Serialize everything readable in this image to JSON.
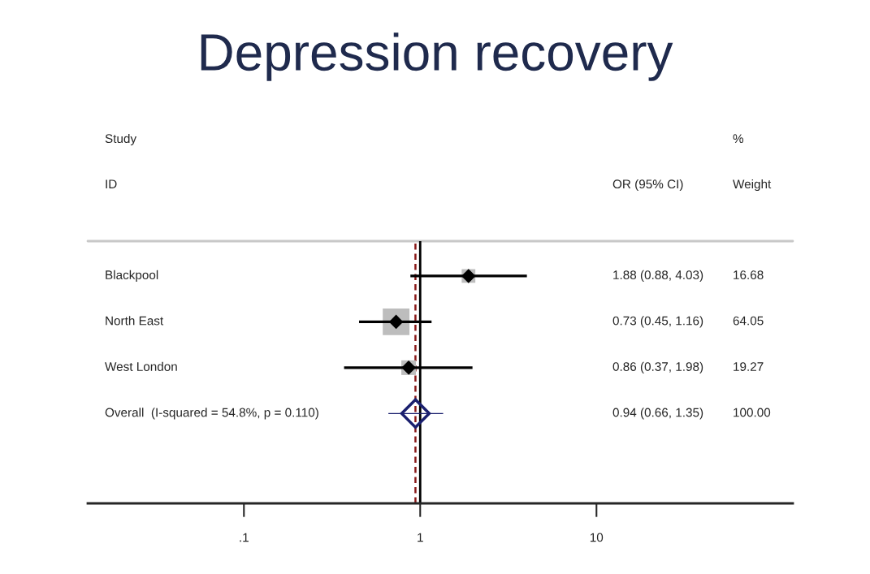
{
  "chart_data": {
    "type": "scatter",
    "orientation": "horizontal",
    "title": "Depression recovery",
    "categories": [
      "Blackpool",
      "North East",
      "West London",
      "Overall  (I-squared = 54.8%, p = 0.110)"
    ],
    "series": [
      {
        "color": "#000000",
        "colors": [
          "#000000",
          "#000000",
          "#000000",
          "#1a1f6e"
        ],
        "marker": "diamond",
        "sizes": [
          0.21,
          0.21,
          0.21,
          1
        ],
        "values": [
          1.88,
          0.73,
          0.86,
          0.94
        ],
        "errors": [
          [
            0.88,
            4.03
          ],
          [
            0.45,
            1.16
          ],
          [
            0.37,
            1.98
          ],
          [
            0.66,
            1.35
          ]
        ]
      }
    ],
    "value_labels": [
      "1.88 (0.88, 4.03)",
      "0.73 (0.45, 1.16)",
      "0.86 (0.37, 1.98)",
      "0.94 (0.66, 1.35)"
    ],
    "annotations": [
      "Study",
      "ID",
      "OR (95% CI)",
      "%",
      "Weight",
      "16.68",
      "64.05",
      "19.27",
      "100.00"
    ],
    "ref_lines": [
      {
        "axis": "x",
        "value": 1,
        "color": "#000000",
        "line_style": "solid"
      },
      {
        "axis": "x",
        "value": 0.94,
        "color": "#8b1a1a",
        "line_style": "dashed"
      }
    ],
    "log": "x",
    "xlim": [
      0.013,
      130
    ],
    "xticks": [
      {
        "value": 0.1,
        "label": ".1"
      },
      1,
      10
    ]
  }
}
